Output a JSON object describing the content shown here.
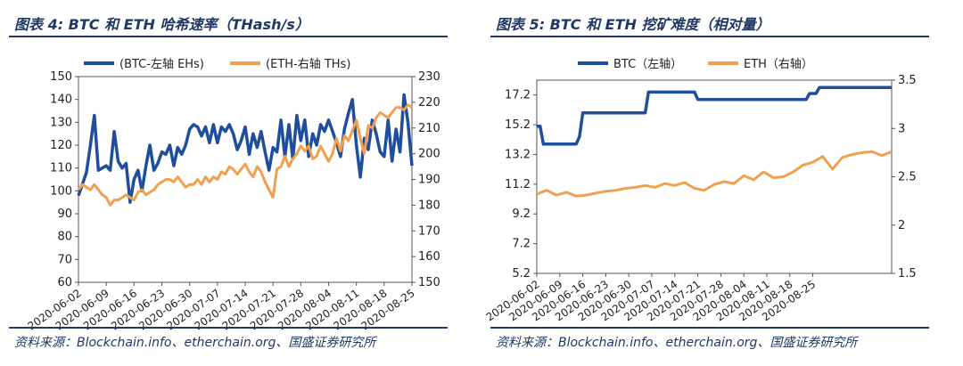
{
  "chart_data": [
    {
      "type": "line",
      "title": "图表 4: BTC 和 ETH 哈希速率（THash/s）",
      "source": "资料来源：Blockchain.info、etherchain.org、国盛证券研究所",
      "colors": {
        "btc": "#1f4e9c",
        "eth": "#f0a050"
      },
      "x_tick_labels": [
        "2020-06-02",
        "2020-06-09",
        "2020-06-16",
        "2020-06-23",
        "2020-06-30",
        "2020-07-07",
        "2020-07-14",
        "2020-07-21",
        "2020-07-28",
        "2020-08-04",
        "2020-08-11",
        "2020-08-18",
        "2020-08-25"
      ],
      "y_left": {
        "min": 60,
        "max": 150,
        "step": 10
      },
      "y_right": {
        "min": 150,
        "max": 230,
        "step": 10
      },
      "legend_position": "top",
      "grid": false,
      "series": [
        {
          "name": "(BTC-左轴 EHs)",
          "axis": "left",
          "color": "#1f4e9c",
          "values": [
            98,
            103,
            108,
            120,
            133,
            109,
            110,
            111,
            109,
            126,
            113,
            110,
            112,
            95,
            105,
            109,
            100,
            111,
            120,
            109,
            112,
            117,
            116,
            120,
            111,
            119,
            116,
            120,
            127,
            129,
            128,
            124,
            128,
            121,
            129,
            121,
            128,
            126,
            129,
            125,
            118,
            122,
            128,
            116,
            125,
            119,
            126,
            117,
            109,
            119,
            117,
            131,
            115,
            129,
            114,
            133,
            122,
            131,
            115,
            125,
            120,
            129,
            126,
            131,
            126,
            121,
            115,
            127,
            134,
            140,
            120,
            106,
            123,
            118,
            131,
            125,
            117,
            115,
            131,
            113,
            127,
            117,
            142,
            130,
            111
          ]
        },
        {
          "name": "(ETH-右轴 THs)",
          "axis": "right",
          "color": "#f0a050",
          "values": [
            186,
            188,
            187,
            186,
            188,
            186,
            184,
            183,
            180,
            182,
            182,
            183,
            184,
            183,
            182,
            185,
            186,
            184,
            185,
            186,
            188,
            189,
            190,
            190,
            189,
            191,
            189,
            187,
            188,
            188,
            190,
            188,
            191,
            189,
            191,
            190,
            193,
            192,
            195,
            194,
            192,
            194,
            196,
            193,
            191,
            195,
            193,
            189,
            186,
            183,
            194,
            195,
            199,
            195,
            198,
            200,
            203,
            201,
            203,
            198,
            199,
            203,
            200,
            197,
            200,
            206,
            201,
            207,
            205,
            209,
            213,
            206,
            200,
            211,
            210,
            214,
            216,
            215,
            214,
            216,
            218,
            218,
            217,
            219,
            218
          ]
        }
      ]
    },
    {
      "type": "line",
      "title": "图表 5: BTC 和 ETH 挖矿难度（相对量）",
      "source": "资料来源：Blockchain.info、etherchain.org、国盛证券研究所",
      "colors": {
        "btc": "#1f4e9c",
        "eth": "#f0a050"
      },
      "x_tick_labels": [
        "2020-06-02",
        "2020-06-09",
        "2020-06-16",
        "2020-06-23",
        "2020-06-30",
        "2020-07-07",
        "2020-07-14",
        "2020-07-21",
        "2020-07-28",
        "2020-08-04",
        "2020-08-11",
        "2020-08-18",
        "2020-08-25"
      ],
      "y_left": {
        "ticks": [
          "5.2",
          "7.2",
          "9.2",
          "11.2",
          "13.2",
          "15.2",
          "17.2"
        ],
        "min": 5.2,
        "max": 18.2
      },
      "y_right": {
        "ticks": [
          "1.5",
          "2",
          "2.5",
          "3",
          "3.5"
        ],
        "min": 1.5,
        "max": 3.5
      },
      "legend_position": "top",
      "grid": false,
      "series": [
        {
          "name": "BTC（左轴）",
          "axis": "left",
          "color": "#1f4e9c",
          "x": [
            0,
            1,
            2,
            12,
            13,
            14,
            33,
            34,
            48,
            49,
            60,
            61,
            82,
            83,
            85,
            86,
            104,
            105,
            108
          ],
          "values": [
            15.1,
            15.1,
            13.9,
            13.9,
            14.4,
            16.0,
            16.0,
            17.4,
            17.4,
            16.9,
            16.9,
            16.9,
            16.9,
            17.3,
            17.3,
            17.7,
            17.7,
            17.7,
            17.7
          ]
        },
        {
          "name": "ETH（右轴）",
          "axis": "right",
          "color": "#f0a050",
          "x": [
            0,
            3,
            6,
            9,
            12,
            15,
            18,
            21,
            24,
            27,
            30,
            33,
            36,
            39,
            42,
            45,
            48,
            51,
            54,
            57,
            60,
            63,
            66,
            69,
            72,
            75,
            78,
            81,
            84,
            87,
            90,
            93,
            96,
            99,
            102,
            105,
            108
          ],
          "values": [
            2.32,
            2.36,
            2.31,
            2.34,
            2.3,
            2.31,
            2.33,
            2.35,
            2.36,
            2.38,
            2.39,
            2.41,
            2.39,
            2.43,
            2.41,
            2.44,
            2.38,
            2.36,
            2.42,
            2.45,
            2.43,
            2.51,
            2.47,
            2.55,
            2.49,
            2.5,
            2.55,
            2.62,
            2.65,
            2.71,
            2.58,
            2.7,
            2.73,
            2.75,
            2.76,
            2.72,
            2.76
          ]
        }
      ]
    }
  ]
}
